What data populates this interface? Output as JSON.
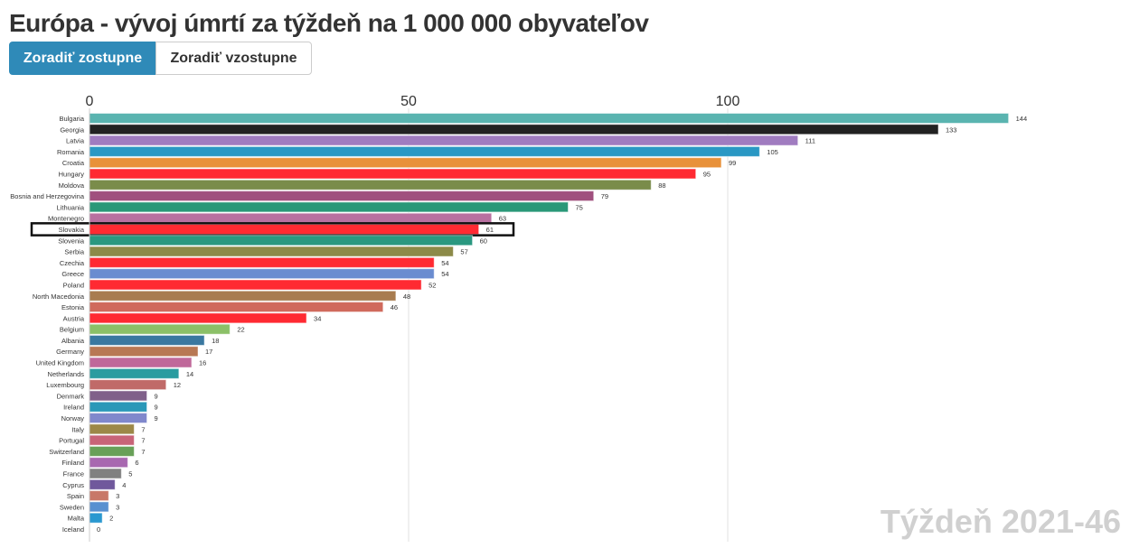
{
  "header": {
    "title": "Európa - vývoj úmrtí za týždeň na 1 000 000 obyvateľov"
  },
  "controls": {
    "sort_desc_label": "Zoradiť zostupne",
    "sort_asc_label": "Zoradiť vzostupne",
    "active": "desc"
  },
  "week_label": "Týždeň 2021-46",
  "chart_data": {
    "type": "bar",
    "orientation": "horizontal",
    "xlim": [
      0,
      144
    ],
    "xticks": [
      0,
      50,
      100
    ],
    "grid": true,
    "highlighted": "Slovakia",
    "categories": [
      "Bulgaria",
      "Georgia",
      "Latvia",
      "Romania",
      "Croatia",
      "Hungary",
      "Moldova",
      "Bosnia and Herzegovina",
      "Lithuania",
      "Montenegro",
      "Slovakia",
      "Slovenia",
      "Serbia",
      "Czechia",
      "Greece",
      "Poland",
      "North Macedonia",
      "Estonia",
      "Austria",
      "Belgium",
      "Albania",
      "Germany",
      "United Kingdom",
      "Netherlands",
      "Luxembourg",
      "Denmark",
      "Ireland",
      "Norway",
      "Italy",
      "Portugal",
      "Switzerland",
      "Finland",
      "France",
      "Cyprus",
      "Spain",
      "Sweden",
      "Malta",
      "Iceland"
    ],
    "values": [
      144,
      133,
      111,
      105,
      99,
      95,
      88,
      79,
      75,
      63,
      61,
      60,
      57,
      54,
      54,
      52,
      48,
      46,
      34,
      22,
      18,
      17,
      16,
      14,
      12,
      9,
      9,
      9,
      7,
      7,
      7,
      6,
      5,
      4,
      3,
      3,
      2,
      0
    ],
    "colors": [
      "#5ab4b0",
      "#222222",
      "#a07cc0",
      "#2a98c4",
      "#e8913a",
      "#ff2a32",
      "#7a8c4a",
      "#a0507e",
      "#2a9878",
      "#b870a0",
      "#ff2a32",
      "#2a9880",
      "#8c8a48",
      "#ff2a32",
      "#6a8cd0",
      "#ff2a32",
      "#a87c50",
      "#d06a5c",
      "#ff2a32",
      "#8cc068",
      "#3a78a0",
      "#b87854",
      "#c0689a",
      "#2a9ca0",
      "#c06a68",
      "#80608a",
      "#2a98b8",
      "#8088cc",
      "#9c8848",
      "#c86478",
      "#68a058",
      "#a868b0",
      "#808080",
      "#70589c",
      "#c87868",
      "#5890d0",
      "#2a98d0",
      "#999999"
    ]
  }
}
